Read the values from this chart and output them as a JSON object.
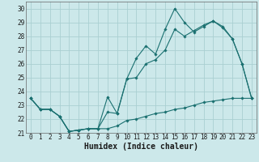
{
  "xlabel": "Humidex (Indice chaleur)",
  "background_color": "#cce8ea",
  "grid_color": "#aacfd2",
  "line_color": "#1a7070",
  "xlim": [
    -0.5,
    23.5
  ],
  "ylim": [
    21.0,
    30.5
  ],
  "xticks": [
    0,
    1,
    2,
    3,
    4,
    5,
    6,
    7,
    8,
    9,
    10,
    11,
    12,
    13,
    14,
    15,
    16,
    17,
    18,
    19,
    20,
    21,
    22,
    23
  ],
  "yticks": [
    21,
    22,
    23,
    24,
    25,
    26,
    27,
    28,
    29,
    30
  ],
  "line1_x": [
    0,
    1,
    2,
    3,
    4,
    5,
    6,
    7,
    8,
    9,
    10,
    11,
    12,
    13,
    14,
    15,
    16,
    17,
    18,
    19,
    20,
    21,
    22,
    23
  ],
  "line1_y": [
    23.5,
    22.7,
    22.7,
    22.2,
    21.1,
    21.2,
    21.3,
    21.3,
    23.6,
    22.4,
    24.9,
    26.4,
    27.3,
    26.7,
    28.5,
    30.0,
    29.0,
    28.3,
    28.7,
    29.1,
    28.7,
    27.8,
    26.0,
    23.5
  ],
  "line2_x": [
    0,
    1,
    2,
    3,
    4,
    5,
    6,
    7,
    8,
    9,
    10,
    11,
    12,
    13,
    14,
    15,
    16,
    17,
    18,
    19,
    20,
    21,
    22,
    23
  ],
  "line2_y": [
    23.5,
    22.7,
    22.7,
    22.2,
    21.1,
    21.2,
    21.3,
    21.3,
    22.5,
    22.4,
    24.9,
    25.0,
    26.0,
    26.3,
    27.0,
    28.5,
    28.0,
    28.4,
    28.8,
    29.1,
    28.6,
    27.8,
    26.0,
    23.5
  ],
  "line3_x": [
    0,
    1,
    2,
    3,
    4,
    5,
    6,
    7,
    8,
    9,
    10,
    11,
    12,
    13,
    14,
    15,
    16,
    17,
    18,
    19,
    20,
    21,
    22,
    23
  ],
  "line3_y": [
    23.5,
    22.7,
    22.7,
    22.2,
    21.1,
    21.2,
    21.3,
    21.3,
    21.3,
    21.5,
    21.9,
    22.0,
    22.2,
    22.4,
    22.5,
    22.7,
    22.8,
    23.0,
    23.2,
    23.3,
    23.4,
    23.5,
    23.5,
    23.5
  ],
  "tick_fontsize": 5.5,
  "xlabel_fontsize": 7.0
}
